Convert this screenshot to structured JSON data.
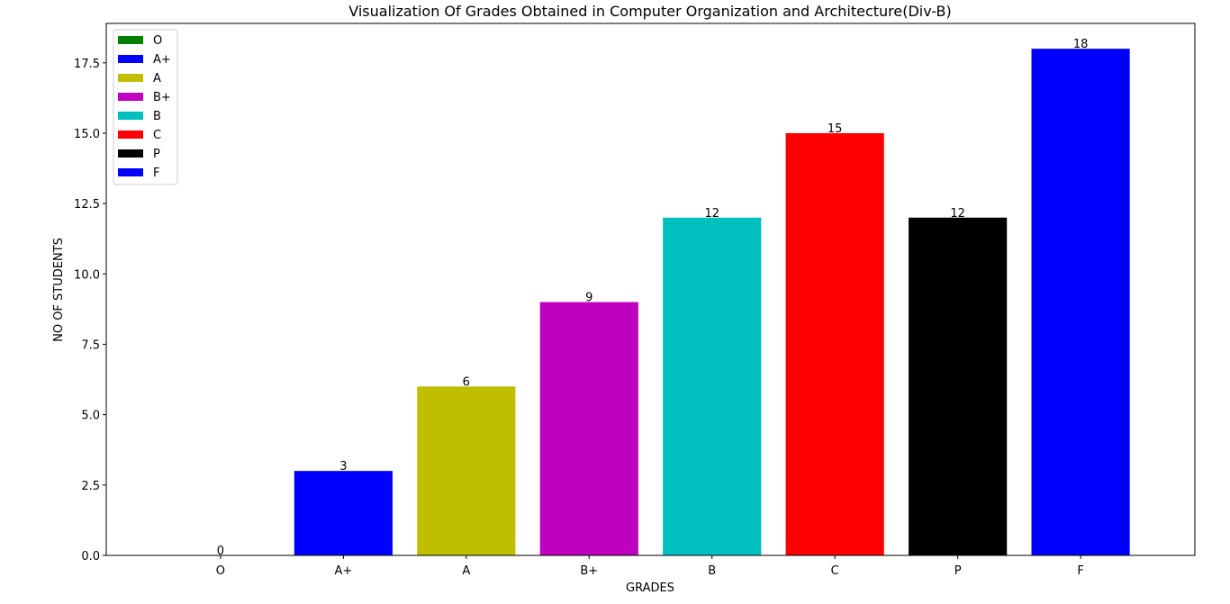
{
  "chart_data": {
    "type": "bar",
    "title": "Visualization Of Grades Obtained in Computer Organization and Architecture(Div-B)",
    "xlabel": "GRADES",
    "ylabel": "NO OF STUDENTS",
    "categories": [
      "O",
      "A+",
      "A",
      "B+",
      "B",
      "C",
      "P",
      "F"
    ],
    "values": [
      0,
      3,
      6,
      9,
      12,
      15,
      12,
      18
    ],
    "colors": [
      "#008000",
      "#0000ff",
      "#bfbf00",
      "#bf00bf",
      "#00bfbf",
      "#ff0000",
      "#000000",
      "#0000ff"
    ],
    "ylim": [
      0,
      18.9
    ],
    "yticks": [
      0.0,
      2.5,
      5.0,
      7.5,
      10.0,
      12.5,
      15.0,
      17.5
    ],
    "ytick_labels": [
      "0.0",
      "2.5",
      "5.0",
      "7.5",
      "10.0",
      "12.5",
      "15.0",
      "17.5"
    ],
    "legend": {
      "position": "upper-left",
      "entries": [
        "O",
        "A+",
        "A",
        "B+",
        "B",
        "C",
        "P",
        "F"
      ]
    },
    "grid": false
  }
}
